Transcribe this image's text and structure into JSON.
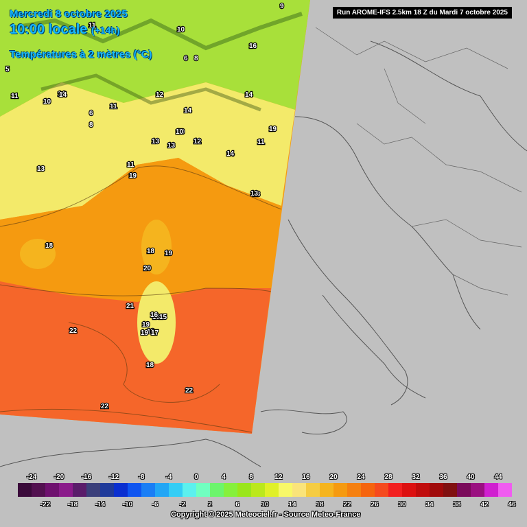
{
  "title": {
    "date": "Mercredi 8 octobre 2025",
    "time": "10:00 locale",
    "lead": "(+14h)",
    "parameter": "Températures à 2 mètres (°C)"
  },
  "run_info": "Run AROME-IFS 2.5km 18 Z du Mardi 7 octobre 2025",
  "copyright": "Copyright © 2025 Meteociel.fr - Source Meteo-France",
  "legend": {
    "values": [
      -24,
      -22,
      -20,
      -18,
      -16,
      -14,
      -12,
      -10,
      -8,
      -6,
      -4,
      -2,
      0,
      2,
      4,
      6,
      8,
      10,
      12,
      14,
      16,
      18,
      20,
      22,
      24,
      26,
      28,
      30,
      32,
      34,
      36,
      38,
      40,
      42,
      44,
      46
    ],
    "colors": [
      "#3a0a3a",
      "#52104f",
      "#6e106e",
      "#8a1a8a",
      "#5a1c6a",
      "#3b3f7a",
      "#1f3a9a",
      "#0a2fd0",
      "#0f55f0",
      "#1a7ef5",
      "#22a6f5",
      "#34cdf5",
      "#5cf0ee",
      "#70ffc0",
      "#6cf56c",
      "#86f03c",
      "#9ae61c",
      "#bbe81c",
      "#e0f028",
      "#f8f868",
      "#fae47a",
      "#f5cc42",
      "#f5b41e",
      "#f59a10",
      "#f58010",
      "#f5640e",
      "#f54a1e",
      "#f21f1f",
      "#dc1010",
      "#c00c0c",
      "#a00a0a",
      "#801010",
      "#7a0a5a",
      "#9a1080",
      "#d020d0",
      "#f05cf0"
    ]
  },
  "map_labels": [
    "9",
    "10",
    "14",
    "16",
    "8",
    "6",
    "11",
    "10",
    "14",
    "12",
    "11",
    "14",
    "10",
    "5",
    "6",
    "8",
    "11",
    "12",
    "14",
    "13",
    "13",
    "12",
    "10",
    "14",
    "11",
    "13",
    "13",
    "19",
    "18",
    "11",
    "19",
    "13",
    "18",
    "18",
    "16",
    "19",
    "20",
    "21",
    "19",
    "16",
    "15",
    "19",
    "17",
    "18",
    "22",
    "22",
    "22"
  ],
  "palette": {
    "sea_warm": "#f5662a",
    "sea_orange": "#f59a10",
    "land_gray": "#c0c0c0",
    "title_blue": "#17b8ff"
  }
}
